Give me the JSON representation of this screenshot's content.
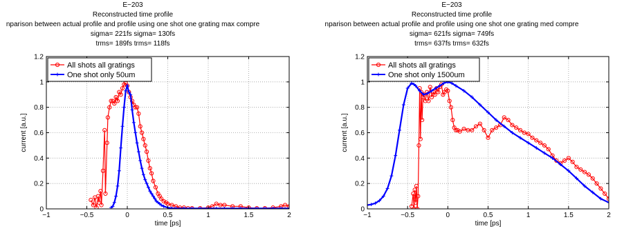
{
  "chart_data": [
    {
      "type": "line",
      "title_lines": [
        "E−203",
        "Reconstructed time profile",
        "nparison between actual profile and profile using one shot one grating max compre",
        "sigma= 221fs sigma= 130fs",
        "trms= 189fs trms= 118fs"
      ],
      "xlabel": "time [ps]",
      "ylabel": "current [a.u.]",
      "xlim": [
        -1,
        2
      ],
      "ylim": [
        0,
        1.2
      ],
      "xticks": [
        -1,
        -0.5,
        0,
        0.5,
        1,
        1.5,
        2
      ],
      "yticks": [
        0,
        0.2,
        0.4,
        0.6,
        0.8,
        1,
        1.2
      ],
      "grid": true,
      "legend_position": "top-left",
      "series": [
        {
          "name": "All shots all gratings",
          "color": "#ff0000",
          "marker": "circle",
          "x": [
            -0.45,
            -0.42,
            -0.4,
            -0.38,
            -0.36,
            -0.35,
            -0.33,
            -0.32,
            -0.3,
            -0.28,
            -0.27,
            -0.25,
            -0.24,
            -0.22,
            -0.2,
            -0.18,
            -0.16,
            -0.14,
            -0.12,
            -0.1,
            -0.08,
            -0.06,
            -0.04,
            -0.02,
            0,
            0.02,
            0.04,
            0.06,
            0.08,
            0.1,
            0.12,
            0.14,
            0.16,
            0.18,
            0.2,
            0.22,
            0.24,
            0.26,
            0.28,
            0.3,
            0.32,
            0.35,
            0.38,
            0.4,
            0.42,
            0.45,
            0.48,
            0.5,
            0.55,
            0.6,
            0.65,
            0.7,
            0.75,
            0.8,
            0.9,
            1.0,
            1.05,
            1.1,
            1.15,
            1.2,
            1.3,
            1.4,
            1.5,
            1.6,
            1.7,
            1.8,
            1.9,
            1.95,
            2.0
          ],
          "y": [
            0.07,
            0.03,
            0.09,
            0.01,
            0.1,
            0.05,
            0.14,
            0.03,
            0.3,
            0.62,
            0.12,
            0.52,
            0.72,
            0.8,
            0.85,
            0.85,
            0.83,
            0.88,
            0.85,
            0.92,
            0.9,
            0.95,
            0.98,
            0.99,
            0.97,
            0.92,
            0.88,
            0.85,
            0.82,
            0.8,
            0.8,
            0.75,
            0.65,
            0.6,
            0.55,
            0.5,
            0.45,
            0.38,
            0.32,
            0.28,
            0.22,
            0.17,
            0.12,
            0.1,
            0.08,
            0.06,
            0.05,
            0.04,
            0.03,
            0.02,
            0.01,
            0.01,
            0.005,
            0.005,
            0.005,
            0.01,
            0.02,
            0.04,
            0.03,
            0.03,
            0.02,
            0.02,
            0.01,
            0.005,
            0.005,
            0.01,
            0.02,
            0.03,
            0.02
          ]
        },
        {
          "name": "One shot only 50um",
          "color": "#0000ff",
          "marker": "plus",
          "x": [
            -0.2,
            -0.18,
            -0.16,
            -0.14,
            -0.12,
            -0.1,
            -0.08,
            -0.06,
            -0.04,
            -0.02,
            0,
            0.02,
            0.04,
            0.06,
            0.08,
            0.1,
            0.12,
            0.14,
            0.16,
            0.18,
            0.2,
            0.22,
            0.24,
            0.26,
            0.28,
            0.3,
            0.32,
            0.34,
            0.36,
            0.38,
            0.4,
            0.42,
            0.45,
            0.5,
            0.55,
            0.6,
            0.7,
            0.8,
            0.9,
            1.0,
            1.1,
            1.2,
            1.3,
            1.4,
            1.5,
            1.6,
            1.7,
            1.8,
            1.9,
            2.0
          ],
          "y": [
            0.01,
            0.02,
            0.05,
            0.1,
            0.18,
            0.3,
            0.48,
            0.65,
            0.8,
            0.93,
            0.97,
            0.92,
            0.9,
            0.78,
            0.68,
            0.6,
            0.52,
            0.45,
            0.38,
            0.32,
            0.27,
            0.23,
            0.2,
            0.17,
            0.14,
            0.12,
            0.1,
            0.08,
            0.06,
            0.05,
            0.04,
            0.03,
            0.02,
            0.01,
            0.005,
            0.004,
            0.003,
            0.003,
            0.003,
            0.003,
            0.003,
            0.003,
            0.003,
            0.003,
            0.003,
            0.003,
            0.003,
            0.003,
            0.003,
            0.003
          ]
        }
      ]
    },
    {
      "type": "line",
      "title_lines": [
        "E−203",
        "Reconstructed time profile",
        "nparison between actual profile and profile using one shot one grating med compre",
        "sigma= 621fs sigma= 749fs",
        "trms= 637fs trms= 632fs"
      ],
      "xlabel": "time [ps]",
      "ylabel": "current [a.u.]",
      "xlim": [
        -1,
        2
      ],
      "ylim": [
        0,
        1.2
      ],
      "xticks": [
        -1,
        -0.5,
        0,
        0.5,
        1,
        1.5,
        2
      ],
      "yticks": [
        0,
        0.2,
        0.4,
        0.6,
        0.8,
        1,
        1.2
      ],
      "grid": true,
      "legend_position": "top-left",
      "series": [
        {
          "name": "All shots all gratings",
          "color": "#ff0000",
          "marker": "circle",
          "x": [
            -0.45,
            -0.43,
            -0.42,
            -0.41,
            -0.4,
            -0.39,
            -0.38,
            -0.37,
            -0.36,
            -0.35,
            -0.34,
            -0.33,
            -0.32,
            -0.31,
            -0.3,
            -0.28,
            -0.26,
            -0.24,
            -0.22,
            -0.2,
            -0.18,
            -0.16,
            -0.14,
            -0.12,
            -0.1,
            -0.08,
            -0.06,
            -0.04,
            -0.02,
            0,
            0.02,
            0.04,
            0.06,
            0.08,
            0.1,
            0.12,
            0.15,
            0.2,
            0.25,
            0.3,
            0.35,
            0.4,
            0.45,
            0.5,
            0.55,
            0.6,
            0.65,
            0.7,
            0.75,
            0.8,
            0.85,
            0.9,
            0.95,
            1.0,
            1.05,
            1.1,
            1.15,
            1.2,
            1.25,
            1.3,
            1.35,
            1.4,
            1.45,
            1.5,
            1.55,
            1.6,
            1.65,
            1.7,
            1.75,
            1.8,
            1.85,
            1.9,
            1.95,
            2.0
          ],
          "y": [
            0.02,
            0.12,
            0.0,
            0.15,
            0.05,
            0.18,
            0.0,
            0.1,
            0.5,
            0.95,
            0.55,
            0.92,
            0.7,
            0.88,
            0.9,
            0.85,
            0.92,
            0.85,
            0.96,
            0.88,
            0.92,
            0.9,
            0.95,
            0.92,
            0.96,
            0.98,
            0.9,
            0.92,
            0.94,
            0.93,
            0.85,
            0.8,
            0.7,
            0.64,
            0.62,
            0.62,
            0.61,
            0.63,
            0.62,
            0.62,
            0.65,
            0.67,
            0.62,
            0.56,
            0.62,
            0.64,
            0.66,
            0.72,
            0.7,
            0.66,
            0.64,
            0.62,
            0.6,
            0.59,
            0.56,
            0.54,
            0.52,
            0.5,
            0.47,
            0.42,
            0.38,
            0.36,
            0.38,
            0.4,
            0.37,
            0.33,
            0.31,
            0.29,
            0.27,
            0.24,
            0.2,
            0.16,
            0.12,
            0.08
          ]
        },
        {
          "name": "One shot only 1500um",
          "color": "#0000ff",
          "marker": "plus",
          "x": [
            -1,
            -0.95,
            -0.9,
            -0.85,
            -0.8,
            -0.75,
            -0.7,
            -0.65,
            -0.6,
            -0.55,
            -0.5,
            -0.45,
            -0.42,
            -0.4,
            -0.35,
            -0.3,
            -0.25,
            -0.2,
            -0.15,
            -0.1,
            -0.05,
            0,
            0.05,
            0.1,
            0.2,
            0.3,
            0.4,
            0.5,
            0.6,
            0.7,
            0.8,
            0.9,
            1.0,
            1.1,
            1.2,
            1.3,
            1.4,
            1.5,
            1.6,
            1.7,
            1.8,
            1.9,
            2.0
          ],
          "y": [
            0.03,
            0.035,
            0.045,
            0.065,
            0.1,
            0.16,
            0.26,
            0.42,
            0.62,
            0.82,
            0.95,
            0.99,
            0.98,
            0.97,
            0.93,
            0.9,
            0.91,
            0.93,
            0.95,
            0.97,
            0.99,
            1.0,
            0.99,
            0.97,
            0.93,
            0.88,
            0.82,
            0.76,
            0.7,
            0.65,
            0.6,
            0.56,
            0.52,
            0.48,
            0.44,
            0.4,
            0.35,
            0.3,
            0.24,
            0.18,
            0.13,
            0.08,
            0.05
          ]
        }
      ]
    }
  ]
}
